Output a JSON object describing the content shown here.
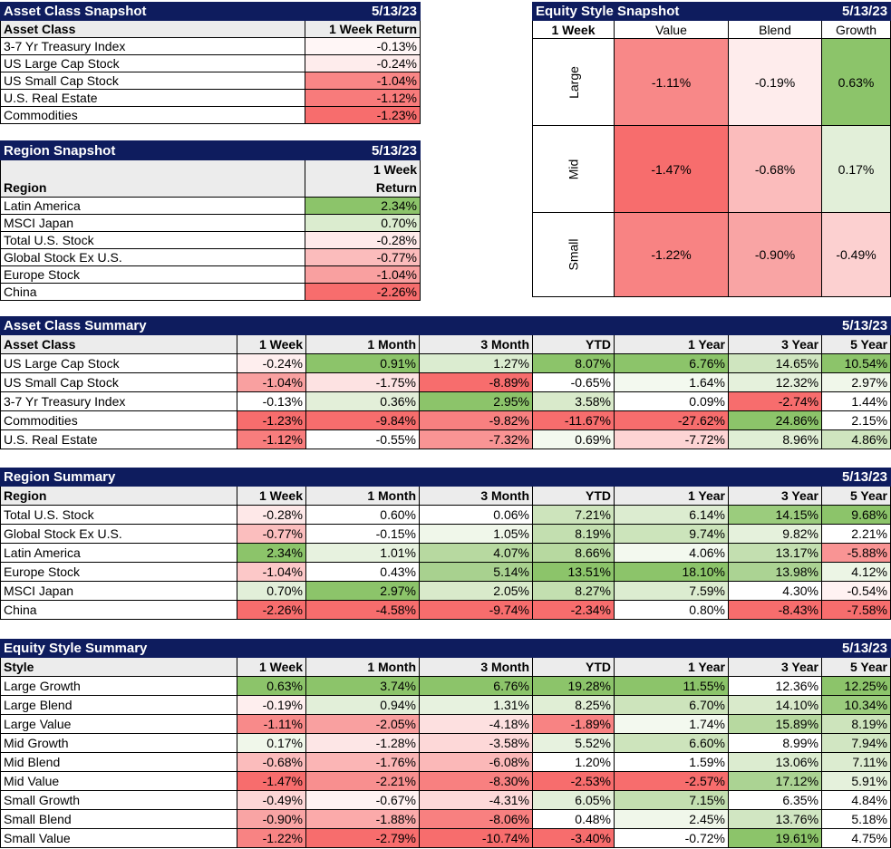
{
  "colors": {
    "header_bg": "#0e1c5e",
    "header_text": "#ffffff",
    "colhdr_bg": "#ececec"
  },
  "asset_snapshot": {
    "title": "Asset Class Snapshot",
    "date": "5/13/23",
    "col_label": "Asset Class",
    "col_value": "1 Week Return",
    "rows": [
      {
        "label": "3-7 Yr Treasury Index",
        "value": "-0.13%",
        "bg": "#fff6f6"
      },
      {
        "label": "US Large Cap Stock",
        "value": "-0.24%",
        "bg": "#feecec"
      },
      {
        "label": "US Small Cap Stock",
        "value": "-1.04%",
        "bg": "#f98686"
      },
      {
        "label": "U.S. Real Estate",
        "value": "-1.12%",
        "bg": "#f87b7b"
      },
      {
        "label": "Commodities",
        "value": "-1.23%",
        "bg": "#f76d6d"
      }
    ]
  },
  "region_snapshot": {
    "title": "Region Snapshot",
    "date": "5/13/23",
    "col_label": "Region",
    "col_value_1": "1 Week",
    "col_value_2": "Return",
    "rows": [
      {
        "label": "Latin America",
        "value": "2.34%",
        "bg": "#8cc46a"
      },
      {
        "label": "MSCI Japan",
        "value": "0.70%",
        "bg": "#dbeccf"
      },
      {
        "label": "Total U.S. Stock",
        "value": "-0.28%",
        "bg": "#feeaea"
      },
      {
        "label": "Global Stock Ex U.S.",
        "value": "-0.77%",
        "bg": "#fbbcbc"
      },
      {
        "label": "Europe Stock",
        "value": "-1.04%",
        "bg": "#f9a0a0"
      },
      {
        "label": "China",
        "value": "-2.26%",
        "bg": "#f76d6d"
      }
    ]
  },
  "equity_snapshot": {
    "title": "Equity Style Snapshot",
    "date": "5/13/23",
    "corner": "1 Week",
    "cols": [
      "Value",
      "Blend",
      "Growth"
    ],
    "rows": [
      {
        "label": "Large",
        "cells": [
          {
            "value": "-1.11%",
            "bg": "#f88888"
          },
          {
            "value": "-0.19%",
            "bg": "#feecec"
          },
          {
            "value": "0.63%",
            "bg": "#8cc46a"
          }
        ]
      },
      {
        "label": "Mid",
        "cells": [
          {
            "value": "-1.47%",
            "bg": "#f76d6d"
          },
          {
            "value": "-0.68%",
            "bg": "#fbbcbc"
          },
          {
            "value": "0.17%",
            "bg": "#e2efd9"
          }
        ]
      },
      {
        "label": "Small",
        "cells": [
          {
            "value": "-1.22%",
            "bg": "#f88383"
          },
          {
            "value": "-0.90%",
            "bg": "#f9a4a4"
          },
          {
            "value": "-0.49%",
            "bg": "#fcd0d0"
          }
        ]
      }
    ]
  },
  "summary_headers": [
    "1 Week",
    "1 Month",
    "3 Month",
    "YTD",
    "1 Year",
    "3 Year",
    "5 Year"
  ],
  "asset_summary": {
    "title": "Asset Class Summary",
    "date": "5/13/23",
    "col_label": "Asset Class",
    "rows": [
      {
        "label": "US Large Cap Stock",
        "cells": [
          {
            "v": "-0.24%",
            "bg": "#feeeee"
          },
          {
            "v": "0.91%",
            "bg": "#8cc46a"
          },
          {
            "v": "1.27%",
            "bg": "#dbecd0"
          },
          {
            "v": "8.07%",
            "bg": "#8cc46a"
          },
          {
            "v": "6.76%",
            "bg": "#8cc46a"
          },
          {
            "v": "14.65%",
            "bg": "#cfe5bf"
          },
          {
            "v": "10.54%",
            "bg": "#8cc46a"
          }
        ]
      },
      {
        "label": "US Small Cap Stock",
        "cells": [
          {
            "v": "-1.04%",
            "bg": "#f9a0a0"
          },
          {
            "v": "-1.75%",
            "bg": "#fde2e2"
          },
          {
            "v": "-8.89%",
            "bg": "#f76d6d"
          },
          {
            "v": "-0.65%",
            "bg": "#ffffff"
          },
          {
            "v": "1.64%",
            "bg": "#f3f9ef"
          },
          {
            "v": "12.32%",
            "bg": "#e5f1dc"
          },
          {
            "v": "2.97%",
            "bg": "#f0f7ea"
          }
        ]
      },
      {
        "label": "3-7 Yr Treasury Index",
        "cells": [
          {
            "v": "-0.13%",
            "bg": "#ffffff"
          },
          {
            "v": "0.36%",
            "bg": "#e3efd9"
          },
          {
            "v": "2.95%",
            "bg": "#8cc46a"
          },
          {
            "v": "3.58%",
            "bg": "#d9eacb"
          },
          {
            "v": "0.09%",
            "bg": "#ffffff"
          },
          {
            "v": "-2.74%",
            "bg": "#f76d6d"
          },
          {
            "v": "1.44%",
            "bg": "#ffffff"
          }
        ]
      },
      {
        "label": "Commodities",
        "cells": [
          {
            "v": "-1.23%",
            "bg": "#f76d6d"
          },
          {
            "v": "-9.84%",
            "bg": "#f76d6d"
          },
          {
            "v": "-9.82%",
            "bg": "#f88080"
          },
          {
            "v": "-11.67%",
            "bg": "#f76d6d"
          },
          {
            "v": "-27.62%",
            "bg": "#f76d6d"
          },
          {
            "v": "24.86%",
            "bg": "#8cc46a"
          },
          {
            "v": "2.15%",
            "bg": "#ffffff"
          }
        ]
      },
      {
        "label": "U.S. Real Estate",
        "cells": [
          {
            "v": "-1.12%",
            "bg": "#f87d7d"
          },
          {
            "v": "-0.55%",
            "bg": "#ffffff"
          },
          {
            "v": "-7.32%",
            "bg": "#f99494"
          },
          {
            "v": "0.69%",
            "bg": "#f3f9ef"
          },
          {
            "v": "-7.72%",
            "bg": "#fdd4d4"
          },
          {
            "v": "8.96%",
            "bg": "#e0eed5"
          },
          {
            "v": "4.86%",
            "bg": "#cfe5bf"
          }
        ]
      }
    ]
  },
  "region_summary": {
    "title": "Region Summary",
    "date": "5/13/23",
    "col_label": "Region",
    "rows": [
      {
        "label": "Total U.S. Stock",
        "cells": [
          {
            "v": "-0.28%",
            "bg": "#fee8e8"
          },
          {
            "v": "0.60%",
            "bg": "#ffffff"
          },
          {
            "v": "0.06%",
            "bg": "#ffffff"
          },
          {
            "v": "7.21%",
            "bg": "#cde4bc"
          },
          {
            "v": "6.14%",
            "bg": "#dcecd0"
          },
          {
            "v": "14.15%",
            "bg": "#9bcc7d"
          },
          {
            "v": "9.68%",
            "bg": "#8cc46a"
          }
        ]
      },
      {
        "label": "Global Stock Ex U.S.",
        "cells": [
          {
            "v": "-0.77%",
            "bg": "#fbbebe"
          },
          {
            "v": "-0.15%",
            "bg": "#ffffff"
          },
          {
            "v": "1.05%",
            "bg": "#f0f7ea"
          },
          {
            "v": "8.19%",
            "bg": "#c3dfb0"
          },
          {
            "v": "9.74%",
            "bg": "#cce4bb"
          },
          {
            "v": "9.82%",
            "bg": "#e5f1dc"
          },
          {
            "v": "2.21%",
            "bg": "#ffffff"
          }
        ]
      },
      {
        "label": "Latin America",
        "cells": [
          {
            "v": "2.34%",
            "bg": "#8cc46a"
          },
          {
            "v": "1.01%",
            "bg": "#e7f2df"
          },
          {
            "v": "4.07%",
            "bg": "#b7d9a0"
          },
          {
            "v": "8.66%",
            "bg": "#b7d9a0"
          },
          {
            "v": "4.06%",
            "bg": "#f3f9ef"
          },
          {
            "v": "13.17%",
            "bg": "#c3dfb0"
          },
          {
            "v": "-5.88%",
            "bg": "#f99494"
          }
        ]
      },
      {
        "label": "Europe Stock",
        "cells": [
          {
            "v": "-1.04%",
            "bg": "#fcc8c8"
          },
          {
            "v": "0.43%",
            "bg": "#ffffff"
          },
          {
            "v": "5.14%",
            "bg": "#a8d18f"
          },
          {
            "v": "13.51%",
            "bg": "#8cc46a"
          },
          {
            "v": "18.10%",
            "bg": "#8cc46a"
          },
          {
            "v": "13.98%",
            "bg": "#abd393"
          },
          {
            "v": "4.12%",
            "bg": "#ecf5e5"
          }
        ]
      },
      {
        "label": "MSCI Japan",
        "cells": [
          {
            "v": "0.70%",
            "bg": "#e2efd9"
          },
          {
            "v": "2.97%",
            "bg": "#8cc46a"
          },
          {
            "v": "2.05%",
            "bg": "#d9eacb"
          },
          {
            "v": "8.27%",
            "bg": "#c3dfb0"
          },
          {
            "v": "7.59%",
            "bg": "#dcecd0"
          },
          {
            "v": "4.30%",
            "bg": "#ffffff"
          },
          {
            "v": "-0.54%",
            "bg": "#fff2f2"
          }
        ]
      },
      {
        "label": "China",
        "cells": [
          {
            "v": "-2.26%",
            "bg": "#f76d6d"
          },
          {
            "v": "-4.58%",
            "bg": "#f76d6d"
          },
          {
            "v": "-9.74%",
            "bg": "#f76d6d"
          },
          {
            "v": "-2.34%",
            "bg": "#f76d6d"
          },
          {
            "v": "0.80%",
            "bg": "#ffffff"
          },
          {
            "v": "-8.43%",
            "bg": "#f76d6d"
          },
          {
            "v": "-7.58%",
            "bg": "#f76d6d"
          }
        ]
      }
    ]
  },
  "equity_summary": {
    "title": "Equity Style Summary",
    "date": "5/13/23",
    "col_label": "Style",
    "rows": [
      {
        "label": "Large Growth",
        "cells": [
          {
            "v": "0.63%",
            "bg": "#8cc46a"
          },
          {
            "v": "3.74%",
            "bg": "#8cc46a"
          },
          {
            "v": "6.76%",
            "bg": "#8cc46a"
          },
          {
            "v": "19.28%",
            "bg": "#8cc46a"
          },
          {
            "v": "11.55%",
            "bg": "#8cc46a"
          },
          {
            "v": "12.36%",
            "bg": "#ffffff"
          },
          {
            "v": "12.25%",
            "bg": "#8cc46a"
          }
        ]
      },
      {
        "label": "Large Blend",
        "cells": [
          {
            "v": "-0.19%",
            "bg": "#feeeee"
          },
          {
            "v": "0.94%",
            "bg": "#e2efd9"
          },
          {
            "v": "1.31%",
            "bg": "#e7f2df"
          },
          {
            "v": "8.25%",
            "bg": "#e0eed5"
          },
          {
            "v": "6.70%",
            "bg": "#cde4bc"
          },
          {
            "v": "14.10%",
            "bg": "#d9eacb"
          },
          {
            "v": "10.34%",
            "bg": "#9bcc7d"
          }
        ]
      },
      {
        "label": "Large Value",
        "cells": [
          {
            "v": "-1.11%",
            "bg": "#f88a8a"
          },
          {
            "v": "-2.05%",
            "bg": "#f9a0a0"
          },
          {
            "v": "-4.18%",
            "bg": "#fde0e0"
          },
          {
            "v": "-1.89%",
            "bg": "#f88383"
          },
          {
            "v": "1.74%",
            "bg": "#f3f9ef"
          },
          {
            "v": "15.89%",
            "bg": "#b7d9a0"
          },
          {
            "v": "8.19%",
            "bg": "#cde4bc"
          }
        ]
      },
      {
        "label": "Mid Growth",
        "cells": [
          {
            "v": "0.17%",
            "bg": "#f0f7ea"
          },
          {
            "v": "-1.28%",
            "bg": "#fde6e6"
          },
          {
            "v": "-3.58%",
            "bg": "#fdd8d8"
          },
          {
            "v": "5.52%",
            "bg": "#e7f2df"
          },
          {
            "v": "6.60%",
            "bg": "#cde4bc"
          },
          {
            "v": "8.99%",
            "bg": "#ffffff"
          },
          {
            "v": "7.94%",
            "bg": "#d1e6c2"
          }
        ]
      },
      {
        "label": "Mid Blend",
        "cells": [
          {
            "v": "-0.68%",
            "bg": "#fbbcbc"
          },
          {
            "v": "-1.76%",
            "bg": "#fbb5b5"
          },
          {
            "v": "-6.08%",
            "bg": "#fbb8b8"
          },
          {
            "v": "1.20%",
            "bg": "#ffffff"
          },
          {
            "v": "1.59%",
            "bg": "#ffffff"
          },
          {
            "v": "13.06%",
            "bg": "#dcecd0"
          },
          {
            "v": "7.11%",
            "bg": "#dcecd0"
          }
        ]
      },
      {
        "label": "Mid Value",
        "cells": [
          {
            "v": "-1.47%",
            "bg": "#f76d6d"
          },
          {
            "v": "-2.21%",
            "bg": "#f88f8f"
          },
          {
            "v": "-8.30%",
            "bg": "#f88080"
          },
          {
            "v": "-2.53%",
            "bg": "#f76d6d"
          },
          {
            "v": "-2.57%",
            "bg": "#f76d6d"
          },
          {
            "v": "17.12%",
            "bg": "#abd393"
          },
          {
            "v": "5.91%",
            "bg": "#e5f1dc"
          }
        ]
      },
      {
        "label": "Small Growth",
        "cells": [
          {
            "v": "-0.49%",
            "bg": "#fdd6d6"
          },
          {
            "v": "-0.67%",
            "bg": "#fff2f2"
          },
          {
            "v": "-4.31%",
            "bg": "#fdd8d8"
          },
          {
            "v": "6.05%",
            "bg": "#e2efd9"
          },
          {
            "v": "7.15%",
            "bg": "#c3dfb0"
          },
          {
            "v": "6.35%",
            "bg": "#ffffff"
          },
          {
            "v": "4.84%",
            "bg": "#ffffff"
          }
        ]
      },
      {
        "label": "Small Blend",
        "cells": [
          {
            "v": "-0.90%",
            "bg": "#f9a4a4"
          },
          {
            "v": "-1.88%",
            "bg": "#fbaaaa"
          },
          {
            "v": "-8.06%",
            "bg": "#f88080"
          },
          {
            "v": "0.48%",
            "bg": "#ffffff"
          },
          {
            "v": "2.45%",
            "bg": "#f0f7ea"
          },
          {
            "v": "13.76%",
            "bg": "#d1e6c2"
          },
          {
            "v": "5.18%",
            "bg": "#ffffff"
          }
        ]
      },
      {
        "label": "Small Value",
        "cells": [
          {
            "v": "-1.22%",
            "bg": "#f88383"
          },
          {
            "v": "-2.79%",
            "bg": "#f76d6d"
          },
          {
            "v": "-10.74%",
            "bg": "#f76d6d"
          },
          {
            "v": "-3.40%",
            "bg": "#f76d6d"
          },
          {
            "v": "-0.72%",
            "bg": "#ffffff"
          },
          {
            "v": "19.61%",
            "bg": "#8cc46a"
          },
          {
            "v": "4.75%",
            "bg": "#ffffff"
          }
        ]
      }
    ]
  }
}
